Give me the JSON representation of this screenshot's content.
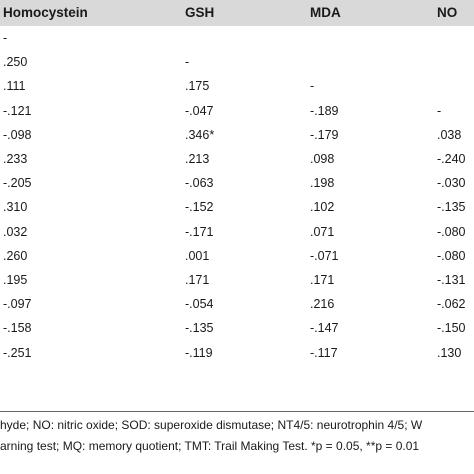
{
  "table": {
    "columns": [
      "Homocystein",
      "GSH",
      "MDA",
      "NO"
    ],
    "rows": [
      [
        "-",
        "",
        "",
        ""
      ],
      [
        ".250",
        "-",
        "",
        ""
      ],
      [
        ".111",
        ".175",
        "-",
        ""
      ],
      [
        "-.121",
        "-.047",
        "-.189",
        "-"
      ],
      [
        "-.098",
        ".346*",
        "-.179",
        ".038"
      ],
      [
        ".233",
        ".213",
        ".098",
        "-.240"
      ],
      [
        "-.205",
        "-.063",
        ".198",
        "-.030"
      ],
      [
        ".310",
        "-.152",
        ".102",
        "-.135"
      ],
      [
        ".032",
        "-.171",
        ".071",
        "-.080"
      ],
      [
        ".260",
        ".001",
        "-.071",
        "-.080"
      ],
      [
        ".195",
        ".171",
        ".171",
        "-.131"
      ],
      [
        "-.097",
        "-.054",
        ".216",
        "-.062"
      ],
      [
        "-.158",
        "-.135",
        "-.147",
        "-.150"
      ],
      [
        "-.251",
        "-.119",
        "-.117",
        ".130"
      ]
    ]
  },
  "footnotes": {
    "line1": "hyde; NO: nitric oxide; SOD: superoxide dismutase; NT4/5: neurotrophin 4/5; W",
    "line2": "arning test; MQ: memory quotient; TMT: Trail Making Test. *p = 0.05, **p = 0.01"
  }
}
